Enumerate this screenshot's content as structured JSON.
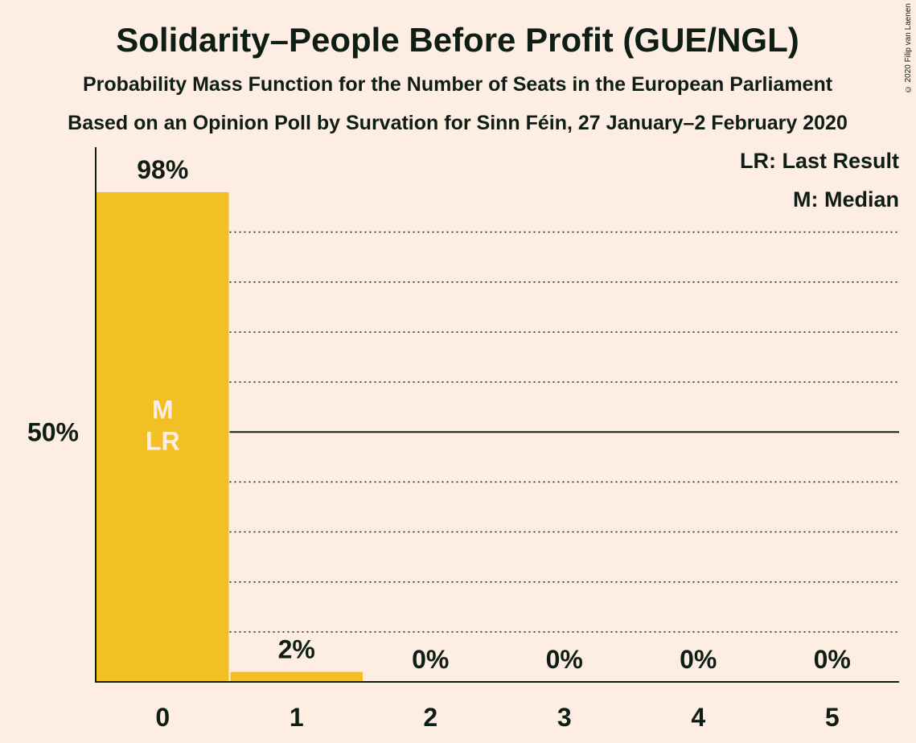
{
  "chart_data": {
    "type": "bar",
    "title": "Solidarity–People Before Profit (GUE/NGL)",
    "subtitle": "Probability Mass Function for the Number of Seats in the European Parliament",
    "subtitle2": "Based on an Opinion Poll by Survation for Sinn Féin, 27 January–2 February 2020",
    "categories": [
      "0",
      "1",
      "2",
      "3",
      "4",
      "5"
    ],
    "values": [
      98,
      2,
      0,
      0,
      0,
      0
    ],
    "value_labels": [
      "98%",
      "2%",
      "0%",
      "0%",
      "0%",
      "0%"
    ],
    "ylim": [
      0,
      107
    ],
    "ytick_label": "50%",
    "ytick_value": 50,
    "gridlines": [
      10,
      20,
      30,
      40,
      60,
      70,
      80,
      90
    ],
    "median_index": 0,
    "last_result_index": 0,
    "bar_markers": [
      "M",
      "LR"
    ],
    "legend": [
      "LR: Last Result",
      "M: Median"
    ],
    "legend_position": "top-right",
    "copyright": "© 2020 Filip van Laenen",
    "colors": {
      "bar": "#F2BF24",
      "background": "#FDEDE3",
      "text": "#0F1E14",
      "marker_text": "#FDEDE3"
    }
  }
}
